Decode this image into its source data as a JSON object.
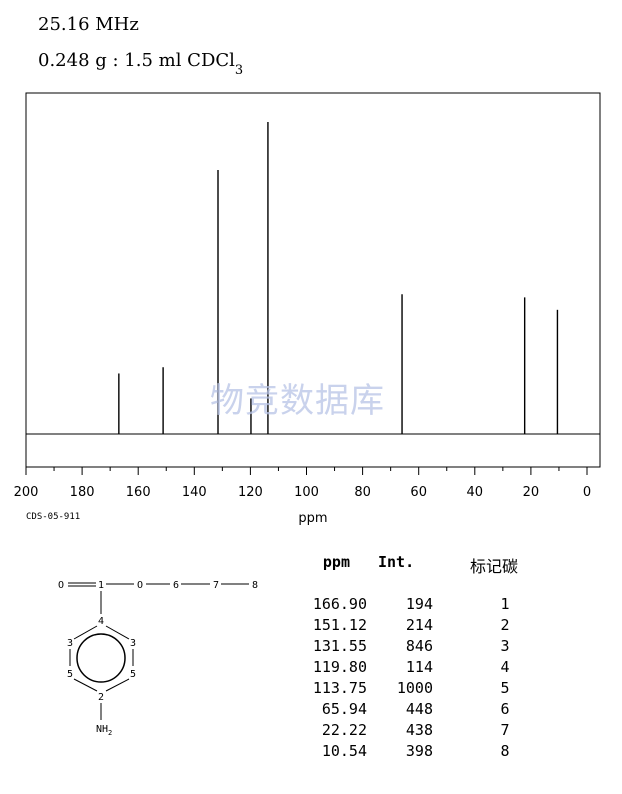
{
  "header": {
    "frequency": "25.16 MHz",
    "sample_main": "0.248 g : 1.5 ml CDCl",
    "sample_sub": "3"
  },
  "watermark": "物竞数据库",
  "code_id": "CDS-05-911",
  "chart_data": {
    "type": "line",
    "xlabel": "ppm",
    "xlim": [
      200,
      0
    ],
    "x_ticks": [
      200,
      180,
      160,
      140,
      120,
      100,
      80,
      60,
      40,
      20,
      0
    ],
    "peaks": [
      {
        "ppm": 166.9,
        "intensity": 194
      },
      {
        "ppm": 151.12,
        "intensity": 214
      },
      {
        "ppm": 131.55,
        "intensity": 846
      },
      {
        "ppm": 119.8,
        "intensity": 114
      },
      {
        "ppm": 113.75,
        "intensity": 1000
      },
      {
        "ppm": 65.94,
        "intensity": 448
      },
      {
        "ppm": 22.22,
        "intensity": 438
      },
      {
        "ppm": 10.54,
        "intensity": 398
      }
    ],
    "title": "",
    "ylabel": ""
  },
  "table": {
    "headers": {
      "ppm": "ppm",
      "int": "Int.",
      "carbon": "标记碳"
    },
    "rows": [
      {
        "ppm": "166.90",
        "int": "194",
        "carbon": "1"
      },
      {
        "ppm": "151.12",
        "int": "214",
        "carbon": "2"
      },
      {
        "ppm": "131.55",
        "int": "846",
        "carbon": "3"
      },
      {
        "ppm": "119.80",
        "int": "114",
        "carbon": "4"
      },
      {
        "ppm": "113.75",
        "int": "1000",
        "carbon": "5"
      },
      {
        "ppm": "65.94",
        "int": "448",
        "carbon": "6"
      },
      {
        "ppm": "22.22",
        "int": "438",
        "carbon": "7"
      },
      {
        "ppm": "10.54",
        "int": "398",
        "carbon": "8"
      }
    ]
  },
  "structure": {
    "atoms": {
      "o_left": "O",
      "c1": "1",
      "o_mid": "O",
      "c6": "6",
      "c7": "7",
      "c8": "8",
      "c4": "4",
      "c3a": "3",
      "c3b": "3",
      "c5a": "5",
      "c5b": "5",
      "c2": "2",
      "nh": "NH",
      "nh_sub": "2"
    }
  }
}
